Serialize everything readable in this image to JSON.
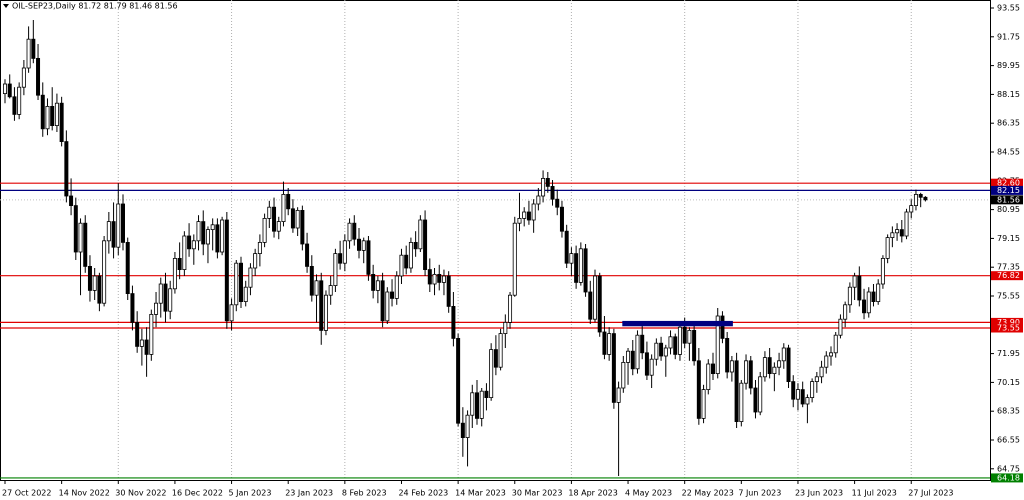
{
  "chart_data": {
    "type": "candlestick",
    "title": "OIL-SEP23,Daily  81.72 81.79 81.46 81.56",
    "categories": [
      "27 Oct 2022",
      null,
      null,
      null,
      null,
      null,
      null,
      null,
      null,
      null,
      null,
      null,
      "14 Nov 2022",
      null,
      null,
      null,
      null,
      null,
      null,
      null,
      null,
      null,
      null,
      null,
      "30 Nov 2022",
      null,
      null,
      null,
      null,
      null,
      null,
      null,
      null,
      null,
      null,
      null,
      "16 Dec 2022",
      null,
      null,
      null,
      null,
      null,
      null,
      null,
      null,
      null,
      null,
      null,
      "5 Jan 2023",
      null,
      null,
      null,
      null,
      null,
      null,
      null,
      null,
      null,
      null,
      null,
      "23 Jan 2023",
      null,
      null,
      null,
      null,
      null,
      null,
      null,
      null,
      null,
      null,
      null,
      "8 Feb 2023",
      null,
      null,
      null,
      null,
      null,
      null,
      null,
      null,
      null,
      null,
      null,
      "24 Feb 2023",
      null,
      null,
      null,
      null,
      null,
      null,
      null,
      null,
      null,
      null,
      null,
      "14 Mar 2023",
      null,
      null,
      null,
      null,
      null,
      null,
      null,
      null,
      null,
      null,
      null,
      "30 Mar 2023",
      null,
      null,
      null,
      null,
      null,
      null,
      null,
      null,
      null,
      null,
      null,
      "18 Apr 2023",
      null,
      null,
      null,
      null,
      null,
      null,
      null,
      null,
      null,
      null,
      null,
      "4 May 2023",
      null,
      null,
      null,
      null,
      null,
      null,
      null,
      null,
      null,
      null,
      null,
      "22 May 2023",
      null,
      null,
      null,
      null,
      null,
      null,
      null,
      null,
      null,
      null,
      null,
      "7 Jun 2023",
      null,
      null,
      null,
      null,
      null,
      null,
      null,
      null,
      null,
      null,
      null,
      "23 Jun 2023",
      null,
      null,
      null,
      null,
      null,
      null,
      null,
      null,
      null,
      null,
      null,
      "11 Jul 2023",
      null,
      null,
      null,
      null,
      null,
      null,
      null,
      null,
      null,
      null,
      null,
      "27 Jul 2023",
      null,
      null,
      null
    ],
    "candles": [
      [
        88.2,
        89.1,
        87.6,
        88.8
      ],
      [
        88.8,
        89.4,
        87.9,
        88.0
      ],
      [
        88.0,
        88.6,
        86.5,
        86.9
      ],
      [
        86.9,
        88.9,
        86.6,
        88.6
      ],
      [
        88.6,
        90.3,
        88.1,
        89.8
      ],
      [
        89.8,
        92.4,
        89.5,
        91.6
      ],
      [
        91.6,
        92.8,
        90.1,
        90.4
      ],
      [
        90.4,
        91.3,
        87.8,
        88.1
      ],
      [
        88.1,
        88.9,
        85.5,
        86.0
      ],
      [
        86.0,
        87.9,
        85.6,
        87.4
      ],
      [
        87.4,
        88.6,
        85.9,
        86.2
      ],
      [
        86.2,
        88.2,
        85.8,
        87.6
      ],
      [
        87.6,
        88.0,
        84.9,
        85.2
      ],
      [
        85.2,
        85.9,
        81.4,
        81.8
      ],
      [
        81.8,
        82.9,
        80.6,
        81.2
      ],
      [
        81.2,
        81.7,
        77.8,
        78.3
      ],
      [
        78.3,
        80.4,
        75.6,
        80.1
      ],
      [
        80.1,
        80.6,
        77.0,
        77.4
      ],
      [
        77.4,
        78.1,
        75.2,
        75.9
      ],
      [
        75.9,
        77.3,
        75.3,
        76.8
      ],
      [
        76.8,
        77.0,
        74.6,
        75.1
      ],
      [
        75.1,
        79.3,
        74.9,
        79.0
      ],
      [
        79.0,
        80.8,
        78.2,
        80.2
      ],
      [
        80.2,
        81.4,
        77.9,
        78.6
      ],
      [
        78.6,
        82.6,
        78.1,
        81.3
      ],
      [
        81.3,
        81.9,
        78.4,
        78.9
      ],
      [
        78.9,
        79.2,
        75.3,
        75.7
      ],
      [
        75.7,
        76.2,
        73.4,
        73.9
      ],
      [
        73.9,
        74.6,
        72.0,
        72.4
      ],
      [
        72.4,
        73.5,
        71.2,
        72.8
      ],
      [
        72.8,
        73.6,
        70.5,
        71.9
      ],
      [
        71.9,
        74.7,
        71.5,
        74.4
      ],
      [
        74.4,
        75.8,
        73.6,
        75.1
      ],
      [
        75.1,
        76.7,
        74.2,
        76.3
      ],
      [
        76.3,
        77.0,
        73.9,
        74.6
      ],
      [
        74.6,
        76.5,
        74.1,
        76.0
      ],
      [
        76.0,
        78.3,
        75.7,
        77.9
      ],
      [
        77.9,
        78.9,
        76.6,
        77.2
      ],
      [
        77.2,
        79.6,
        76.8,
        79.3
      ],
      [
        79.3,
        80.1,
        78.0,
        78.5
      ],
      [
        78.5,
        79.4,
        77.5,
        79.0
      ],
      [
        79.0,
        80.6,
        78.4,
        80.2
      ],
      [
        80.2,
        80.9,
        78.1,
        78.8
      ],
      [
        78.8,
        79.9,
        77.6,
        79.7
      ],
      [
        79.7,
        80.4,
        78.4,
        80.0
      ],
      [
        80.0,
        80.4,
        77.9,
        78.3
      ],
      [
        78.3,
        80.5,
        78.1,
        80.3
      ],
      [
        80.3,
        80.8,
        73.5,
        74.0
      ],
      [
        74.0,
        75.4,
        73.4,
        75.0
      ],
      [
        75.0,
        77.8,
        74.6,
        77.6
      ],
      [
        77.6,
        78.0,
        74.8,
        75.2
      ],
      [
        75.2,
        76.5,
        74.9,
        76.1
      ],
      [
        76.1,
        77.6,
        75.6,
        77.3
      ],
      [
        77.3,
        78.5,
        76.8,
        78.2
      ],
      [
        78.2,
        79.4,
        77.4,
        78.9
      ],
      [
        78.9,
        80.7,
        78.6,
        80.4
      ],
      [
        80.4,
        81.5,
        79.8,
        81.1
      ],
      [
        81.1,
        81.7,
        79.2,
        79.6
      ],
      [
        79.6,
        80.5,
        79.1,
        80.2
      ],
      [
        80.2,
        82.7,
        79.9,
        81.9
      ],
      [
        81.9,
        82.3,
        80.6,
        81.0
      ],
      [
        81.0,
        81.6,
        79.5,
        79.8
      ],
      [
        79.8,
        81.1,
        79.3,
        80.9
      ],
      [
        80.9,
        81.2,
        78.4,
        78.8
      ],
      [
        78.8,
        79.5,
        77.0,
        77.4
      ],
      [
        77.4,
        78.1,
        75.2,
        75.6
      ],
      [
        75.6,
        76.9,
        73.9,
        76.5
      ],
      [
        76.5,
        77.0,
        72.5,
        73.4
      ],
      [
        73.4,
        75.9,
        73.1,
        75.6
      ],
      [
        75.6,
        76.8,
        75.0,
        76.2
      ],
      [
        76.2,
        78.5,
        75.8,
        78.2
      ],
      [
        78.2,
        79.0,
        77.2,
        77.6
      ],
      [
        77.6,
        79.4,
        77.1,
        79.0
      ],
      [
        79.0,
        80.4,
        78.5,
        80.1
      ],
      [
        80.1,
        80.6,
        78.7,
        79.1
      ],
      [
        79.1,
        79.8,
        77.9,
        78.4
      ],
      [
        78.4,
        79.2,
        77.6,
        79.0
      ],
      [
        79.0,
        79.3,
        76.5,
        76.9
      ],
      [
        76.9,
        77.5,
        75.4,
        75.9
      ],
      [
        75.9,
        76.8,
        75.1,
        76.5
      ],
      [
        76.5,
        77.0,
        73.6,
        74.0
      ],
      [
        74.0,
        76.1,
        73.8,
        75.8
      ],
      [
        75.8,
        76.6,
        74.9,
        75.4
      ],
      [
        75.4,
        77.1,
        75.0,
        76.8
      ],
      [
        76.8,
        78.5,
        76.3,
        78.1
      ],
      [
        78.1,
        78.7,
        76.9,
        77.3
      ],
      [
        77.3,
        79.2,
        77.0,
        78.9
      ],
      [
        78.9,
        79.6,
        78.0,
        78.5
      ],
      [
        78.5,
        80.6,
        78.3,
        80.3
      ],
      [
        80.3,
        80.9,
        76.8,
        77.2
      ],
      [
        77.2,
        77.9,
        75.8,
        76.3
      ],
      [
        76.3,
        77.3,
        75.6,
        76.9
      ],
      [
        76.9,
        77.5,
        75.9,
        76.4
      ],
      [
        76.4,
        77.2,
        75.6,
        76.8
      ],
      [
        76.8,
        77.1,
        74.5,
        74.9
      ],
      [
        74.9,
        75.8,
        72.4,
        72.9
      ],
      [
        72.9,
        73.2,
        67.4,
        67.6
      ],
      [
        67.6,
        68.6,
        65.5,
        66.7
      ],
      [
        66.7,
        68.4,
        64.9,
        68.1
      ],
      [
        68.1,
        70.0,
        67.3,
        69.5
      ],
      [
        69.5,
        70.3,
        67.5,
        67.9
      ],
      [
        67.9,
        69.8,
        67.4,
        69.6
      ],
      [
        69.6,
        70.1,
        68.4,
        69.2
      ],
      [
        69.2,
        72.6,
        69.0,
        72.2
      ],
      [
        72.2,
        73.1,
        70.6,
        71.1
      ],
      [
        71.1,
        73.5,
        70.9,
        73.2
      ],
      [
        73.2,
        74.4,
        72.3,
        73.9
      ],
      [
        73.9,
        75.8,
        73.5,
        75.6
      ],
      [
        75.6,
        80.5,
        75.5,
        80.1
      ],
      [
        80.1,
        82.0,
        79.6,
        80.4
      ],
      [
        80.4,
        81.1,
        79.9,
        80.8
      ],
      [
        80.8,
        81.5,
        80.0,
        80.3
      ],
      [
        80.3,
        81.6,
        79.5,
        81.3
      ],
      [
        81.3,
        82.3,
        80.9,
        81.8
      ],
      [
        81.8,
        83.4,
        81.4,
        82.9
      ],
      [
        82.9,
        83.3,
        82.0,
        82.4
      ],
      [
        82.4,
        82.8,
        81.2,
        81.6
      ],
      [
        81.6,
        82.2,
        80.6,
        81.1
      ],
      [
        81.1,
        81.5,
        79.2,
        79.6
      ],
      [
        79.6,
        80.0,
        77.3,
        77.6
      ],
      [
        77.6,
        78.6,
        76.8,
        78.2
      ],
      [
        78.2,
        78.7,
        76.0,
        76.4
      ],
      [
        76.4,
        78.9,
        76.2,
        78.5
      ],
      [
        78.5,
        78.8,
        75.5,
        75.8
      ],
      [
        75.8,
        76.5,
        73.8,
        74.1
      ],
      [
        74.1,
        77.2,
        73.9,
        76.8
      ],
      [
        76.8,
        77.0,
        73.0,
        73.3
      ],
      [
        73.3,
        74.3,
        71.6,
        71.9
      ],
      [
        71.9,
        73.6,
        71.5,
        73.2
      ],
      [
        73.2,
        73.5,
        68.5,
        68.9
      ],
      [
        68.9,
        70.2,
        64.3,
        69.8
      ],
      [
        69.8,
        71.8,
        69.5,
        71.4
      ],
      [
        71.4,
        72.3,
        70.0,
        72.1
      ],
      [
        72.1,
        72.8,
        70.6,
        71.0
      ],
      [
        71.0,
        73.4,
        70.7,
        73.1
      ],
      [
        73.1,
        73.8,
        71.6,
        72.0
      ],
      [
        72.0,
        72.7,
        70.3,
        70.6
      ],
      [
        70.6,
        71.9,
        69.8,
        71.6
      ],
      [
        71.6,
        72.9,
        71.2,
        72.6
      ],
      [
        72.6,
        73.0,
        71.5,
        71.8
      ],
      [
        71.8,
        72.5,
        70.5,
        72.3
      ],
      [
        72.3,
        73.4,
        71.9,
        73.0
      ],
      [
        73.0,
        73.2,
        71.6,
        71.9
      ],
      [
        71.9,
        73.9,
        71.5,
        73.6
      ],
      [
        73.6,
        74.2,
        72.3,
        72.6
      ],
      [
        72.6,
        73.6,
        71.5,
        73.4
      ],
      [
        73.4,
        73.7,
        71.2,
        71.5
      ],
      [
        71.5,
        72.3,
        67.5,
        67.9
      ],
      [
        67.9,
        70.0,
        67.6,
        69.7
      ],
      [
        69.7,
        71.6,
        69.4,
        71.3
      ],
      [
        71.3,
        72.0,
        70.3,
        70.7
      ],
      [
        70.7,
        74.8,
        70.4,
        74.3
      ],
      [
        74.3,
        74.6,
        72.6,
        72.9
      ],
      [
        72.9,
        73.3,
        70.4,
        70.8
      ],
      [
        70.8,
        71.8,
        70.2,
        71.5
      ],
      [
        71.5,
        72.0,
        67.3,
        67.7
      ],
      [
        67.7,
        70.3,
        67.4,
        70.1
      ],
      [
        70.1,
        71.9,
        69.7,
        71.5
      ],
      [
        71.5,
        71.8,
        69.4,
        69.8
      ],
      [
        69.8,
        70.3,
        67.9,
        68.3
      ],
      [
        68.3,
        70.8,
        68.1,
        70.5
      ],
      [
        70.5,
        72.1,
        70.2,
        71.7
      ],
      [
        71.7,
        72.3,
        70.4,
        70.7
      ],
      [
        70.7,
        71.4,
        69.6,
        71.1
      ],
      [
        71.1,
        72.0,
        70.6,
        71.5
      ],
      [
        71.5,
        72.6,
        71.0,
        72.3
      ],
      [
        72.3,
        72.5,
        69.8,
        70.2
      ],
      [
        70.2,
        70.6,
        68.6,
        69.1
      ],
      [
        69.1,
        70.1,
        68.4,
        69.7
      ],
      [
        69.7,
        70.2,
        68.6,
        68.8
      ],
      [
        68.8,
        69.4,
        67.6,
        69.2
      ],
      [
        69.2,
        70.4,
        68.9,
        70.2
      ],
      [
        70.2,
        70.8,
        69.5,
        70.5
      ],
      [
        70.5,
        71.5,
        70.1,
        71.1
      ],
      [
        71.1,
        72.1,
        70.7,
        71.8
      ],
      [
        71.8,
        72.4,
        71.2,
        72.0
      ],
      [
        72.0,
        73.3,
        71.7,
        73.1
      ],
      [
        73.1,
        74.4,
        72.9,
        74.1
      ],
      [
        74.1,
        75.2,
        73.6,
        75.0
      ],
      [
        75.0,
        76.4,
        74.5,
        76.1
      ],
      [
        76.1,
        77.0,
        75.3,
        76.8
      ],
      [
        76.8,
        77.4,
        74.9,
        75.3
      ],
      [
        75.3,
        76.0,
        74.1,
        74.5
      ],
      [
        74.5,
        76.1,
        74.2,
        75.8
      ],
      [
        75.8,
        76.3,
        74.9,
        75.2
      ],
      [
        75.2,
        76.6,
        75.0,
        76.3
      ],
      [
        76.3,
        78.1,
        76.0,
        77.9
      ],
      [
        77.9,
        79.4,
        77.6,
        79.2
      ],
      [
        79.2,
        79.9,
        78.6,
        79.5
      ],
      [
        79.5,
        80.1,
        79.0,
        79.7
      ],
      [
        79.7,
        80.3,
        78.9,
        79.3
      ],
      [
        79.3,
        81.0,
        79.1,
        80.8
      ],
      [
        80.8,
        81.6,
        80.4,
        81.2
      ],
      [
        81.2,
        82.2,
        80.9,
        81.9
      ],
      [
        81.9,
        82.0,
        81.1,
        81.72
      ],
      [
        81.72,
        81.79,
        81.46,
        81.56
      ]
    ],
    "ylim": [
      64.05,
      94.05
    ],
    "yticks": [
      93.55,
      91.75,
      89.95,
      88.15,
      86.35,
      84.55,
      82.75,
      80.95,
      79.15,
      77.35,
      75.55,
      73.75,
      71.95,
      70.15,
      68.35,
      66.55,
      64.75
    ],
    "xgrid": true,
    "hlines": [
      {
        "value": 82.6,
        "label": "82.60",
        "color": "#e00000"
      },
      {
        "value": 82.15,
        "label": "82.15",
        "color": "#000080"
      },
      {
        "value": 76.82,
        "label": "76.82",
        "color": "#e00000"
      },
      {
        "value": 73.9,
        "label": "73.90",
        "color": "#e00000"
      },
      {
        "value": 73.55,
        "label": "73.55",
        "color": "#e00000"
      },
      {
        "value": 64.18,
        "label": "64.18",
        "color": "#008000"
      }
    ],
    "last_price": {
      "value": 81.56,
      "label": "81.56",
      "color": "#000000"
    },
    "boxes": [
      {
        "start": 131,
        "end": 154,
        "low": 73.72,
        "high": 73.93,
        "color": "#000080"
      }
    ]
  }
}
